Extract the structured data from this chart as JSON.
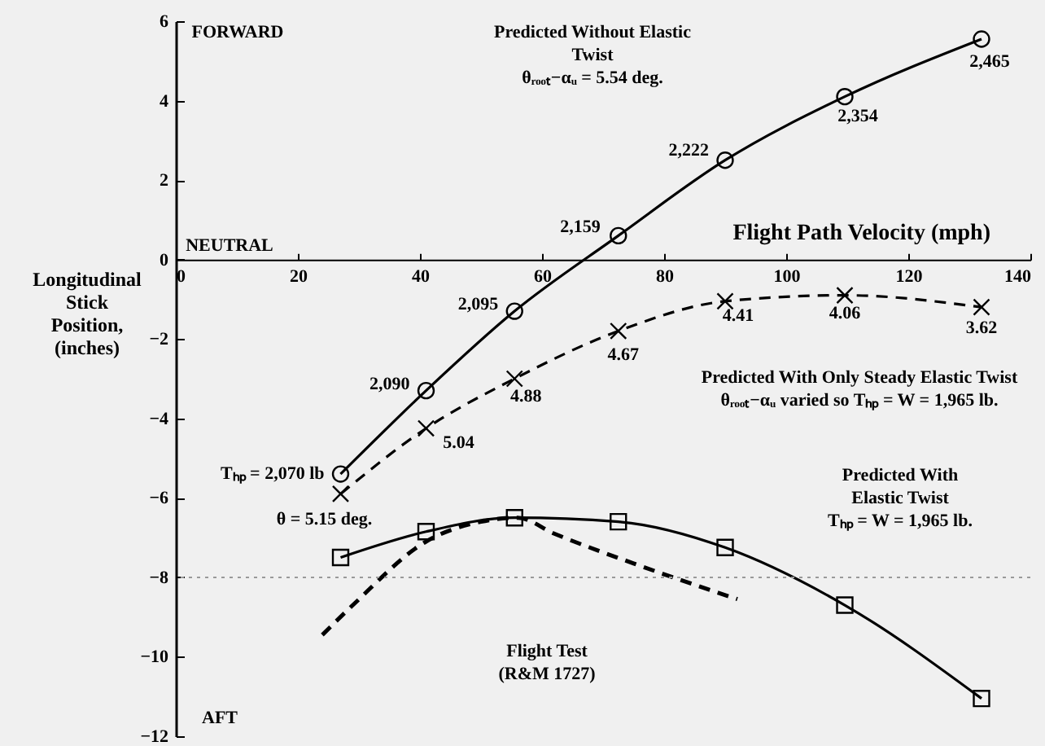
{
  "chart_data": {
    "type": "line",
    "xlabel": "Flight Path Velocity  (mph)",
    "ylabel": "Longitudinal Stick Position, (inches)",
    "xlim": [
      0,
      140
    ],
    "xticks": [
      0,
      20,
      40,
      60,
      80,
      100,
      120,
      140
    ],
    "ylim": [
      -12,
      6
    ],
    "yticks": [
      -12,
      -10,
      -8,
      -6,
      -4,
      -2,
      0,
      2,
      4,
      6
    ],
    "grid": false,
    "series": [
      {
        "color": "#000000",
        "marker": "circle",
        "line_style": "solid",
        "x": [
          27,
          41,
          55.5,
          72.5,
          90,
          109.6,
          132
        ],
        "values": [
          -5.4,
          -3.3,
          -1.3,
          0.6,
          2.5,
          4.1,
          5.55
        ]
      },
      {
        "color": "#000000",
        "marker": "cross",
        "line_style": "dashed",
        "x": [
          27,
          41,
          55.5,
          72.5,
          90,
          109.6,
          132
        ],
        "values": [
          -5.9,
          -4.25,
          -3.0,
          -1.8,
          -1.05,
          -0.9,
          -1.2
        ]
      },
      {
        "color": "#000000",
        "marker": "square",
        "line_style": "solid",
        "x": [
          27,
          41,
          55.5,
          72.5,
          90,
          109.6,
          132
        ],
        "values": [
          -7.5,
          -6.85,
          -6.5,
          -6.6,
          -7.25,
          -8.7,
          -11.05
        ]
      },
      {
        "color": "#000000",
        "marker": "none",
        "line_style": "dashed",
        "x": [
          24,
          29,
          41,
          50,
          56,
          62,
          75,
          92
        ],
        "values": [
          -9.45,
          -8.7,
          -7.1,
          -6.6,
          -6.5,
          -6.9,
          -7.65,
          -8.55
        ]
      }
    ],
    "ref_lines": [
      {
        "axis": "y",
        "value": -8,
        "color": "#999999",
        "line_style": "dotted"
      }
    ],
    "annotations": [
      "FORWARD",
      "NEUTRAL",
      "AFT",
      "Predicted Without Elastic\nTwist\nθᵣₒₒₜ−αᵤ = 5.54 deg.",
      "Predicted With Only Steady Elastic Twist\nθᵣₒₒₜ−αᵤ varied so Tₕₚ = W = 1,965 lb.",
      "Predicted With\nElastic Twist\nTₕₚ = W = 1,965 lb.",
      "Flight Test\n(R&M 1727)",
      {
        "text": "Tₕₚ = 2,070 lb",
        "x": 27,
        "y": -5.4
      },
      {
        "text": "2,090",
        "x": 41,
        "y": -3.3
      },
      {
        "text": "2,095",
        "x": 55.5,
        "y": -1.3
      },
      {
        "text": "2,159",
        "x": 72.5,
        "y": 0.6
      },
      {
        "text": "2,222",
        "x": 90,
        "y": 2.5
      },
      {
        "text": "2,354",
        "x": 109.6,
        "y": 4.1
      },
      {
        "text": "2,465",
        "x": 132,
        "y": 5.55
      },
      {
        "text": "θ = 5.15 deg.",
        "x": 27,
        "y": -5.9
      },
      {
        "text": "5.04",
        "x": 41,
        "y": -4.25
      },
      {
        "text": "4.88",
        "x": 55.5,
        "y": -3.0
      },
      {
        "text": "4.67",
        "x": 72.5,
        "y": -1.8
      },
      {
        "text": "4.41",
        "x": 90,
        "y": -1.05
      },
      {
        "text": "4.06",
        "x": 109.6,
        "y": -0.9
      },
      {
        "text": "3.62",
        "x": 132,
        "y": -1.2
      }
    ]
  }
}
